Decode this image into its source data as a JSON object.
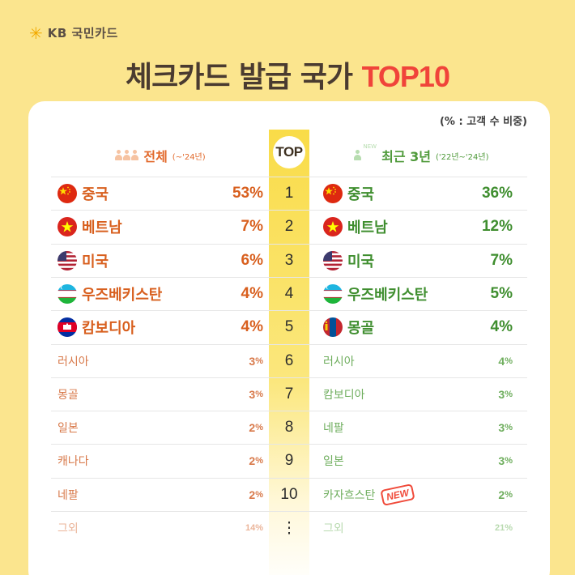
{
  "brand": {
    "logo_mark": "star-burst-icon",
    "name": "KB 국민카드"
  },
  "title": {
    "main": "체크카드 발급 국가 ",
    "accent": "TOP10",
    "accent_color": "#F0443A"
  },
  "unit_note": "(% : 고객 수 비중)",
  "badge": "TOP",
  "left_header": {
    "label": "전체",
    "period": "(~'24년)",
    "color": "#E26A2C"
  },
  "right_header": {
    "new_tag": "NEW",
    "label": "최근 3년",
    "period": "('22년~'24년)",
    "color": "#4F9A3A"
  },
  "rows": [
    {
      "rank": "1",
      "left": {
        "country": "중국",
        "value": "53",
        "flag": "china"
      },
      "right": {
        "country": "중국",
        "value": "36",
        "flag": "china"
      }
    },
    {
      "rank": "2",
      "left": {
        "country": "베트남",
        "value": "7",
        "flag": "vietnam"
      },
      "right": {
        "country": "베트남",
        "value": "12",
        "flag": "vietnam"
      }
    },
    {
      "rank": "3",
      "left": {
        "country": "미국",
        "value": "6",
        "flag": "usa"
      },
      "right": {
        "country": "미국",
        "value": "7",
        "flag": "usa"
      }
    },
    {
      "rank": "4",
      "left": {
        "country": "우즈베키스탄",
        "value": "4",
        "flag": "uzbekistan"
      },
      "right": {
        "country": "우즈베키스탄",
        "value": "5",
        "flag": "uzbekistan"
      }
    },
    {
      "rank": "5",
      "left": {
        "country": "캄보디아",
        "value": "4",
        "flag": "cambodia"
      },
      "right": {
        "country": "몽골",
        "value": "4",
        "flag": "mongolia"
      }
    },
    {
      "rank": "6",
      "left": {
        "country": "러시아",
        "value": "3"
      },
      "right": {
        "country": "러시아",
        "value": "4"
      }
    },
    {
      "rank": "7",
      "left": {
        "country": "몽골",
        "value": "3"
      },
      "right": {
        "country": "캄보디아",
        "value": "3"
      }
    },
    {
      "rank": "8",
      "left": {
        "country": "일본",
        "value": "2"
      },
      "right": {
        "country": "네팔",
        "value": "3"
      }
    },
    {
      "rank": "9",
      "left": {
        "country": "캐나다",
        "value": "2"
      },
      "right": {
        "country": "일본",
        "value": "3"
      }
    },
    {
      "rank": "10",
      "left": {
        "country": "네팔",
        "value": "2"
      },
      "right": {
        "country": "카자흐스탄",
        "value": "2",
        "badge": "NEW"
      }
    },
    {
      "rank": "⋮",
      "left": {
        "country": "그외",
        "value": "14"
      },
      "right": {
        "country": "그외",
        "value": "21"
      }
    }
  ],
  "percent_sign": "%"
}
